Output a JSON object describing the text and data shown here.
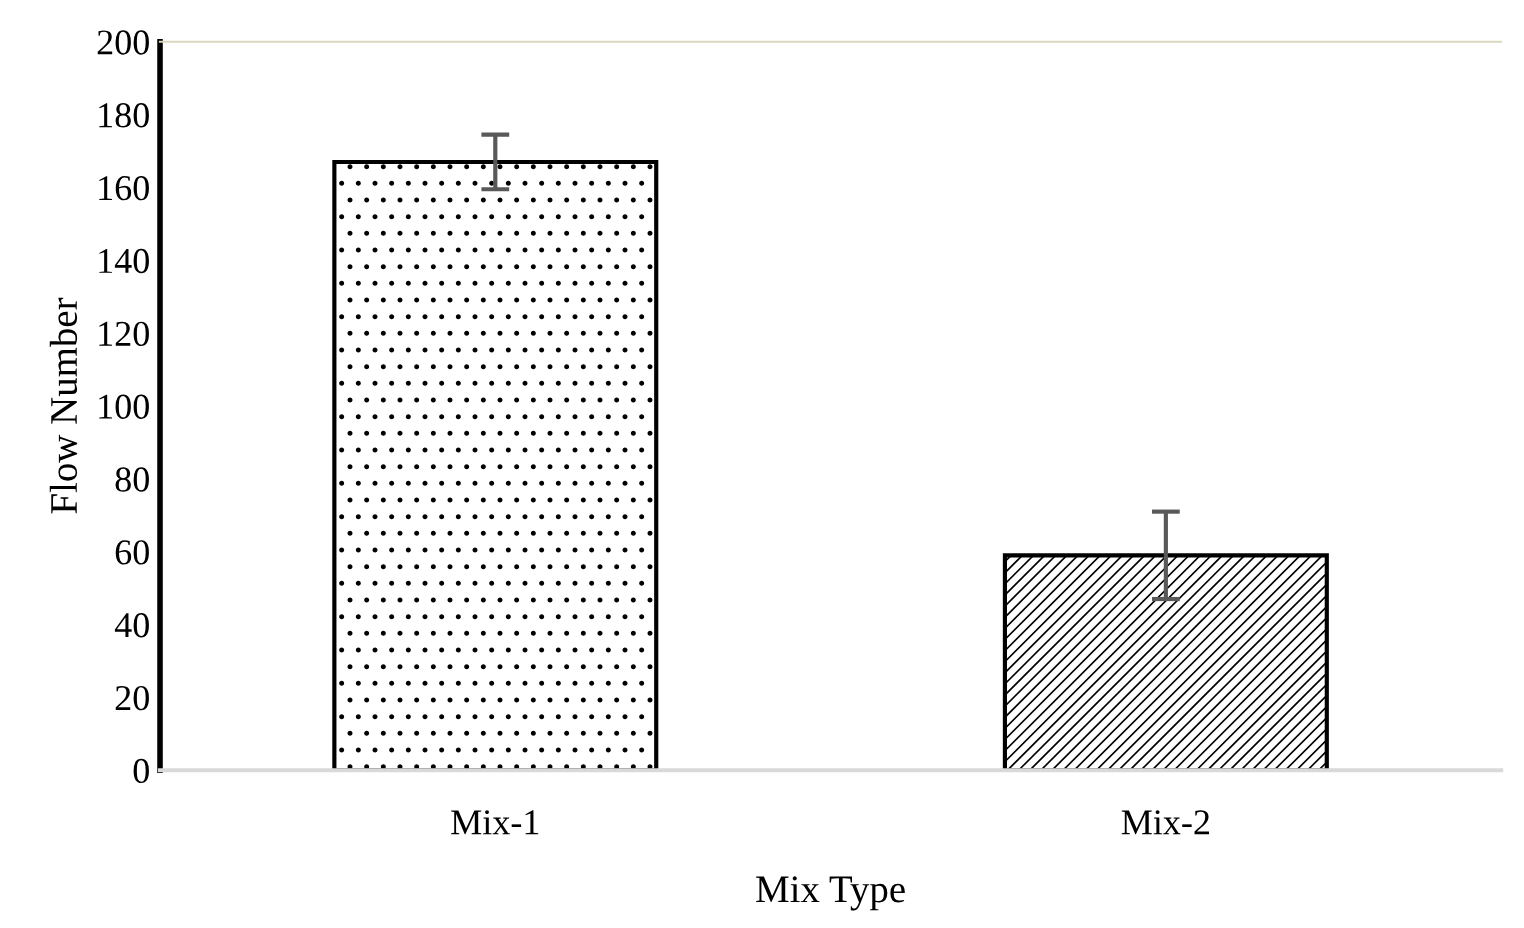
{
  "chart_data": {
    "type": "bar",
    "xlabel": "Mix Type",
    "ylabel": "Flow Number",
    "categories": [
      "Mix-1",
      "Mix-2"
    ],
    "values": [
      167,
      59
    ],
    "errors": [
      7.5,
      12
    ],
    "ylim": [
      0,
      200
    ],
    "yticks": [
      0,
      20,
      40,
      60,
      80,
      100,
      120,
      140,
      160,
      180,
      200
    ],
    "grid": false,
    "legend": false
  }
}
